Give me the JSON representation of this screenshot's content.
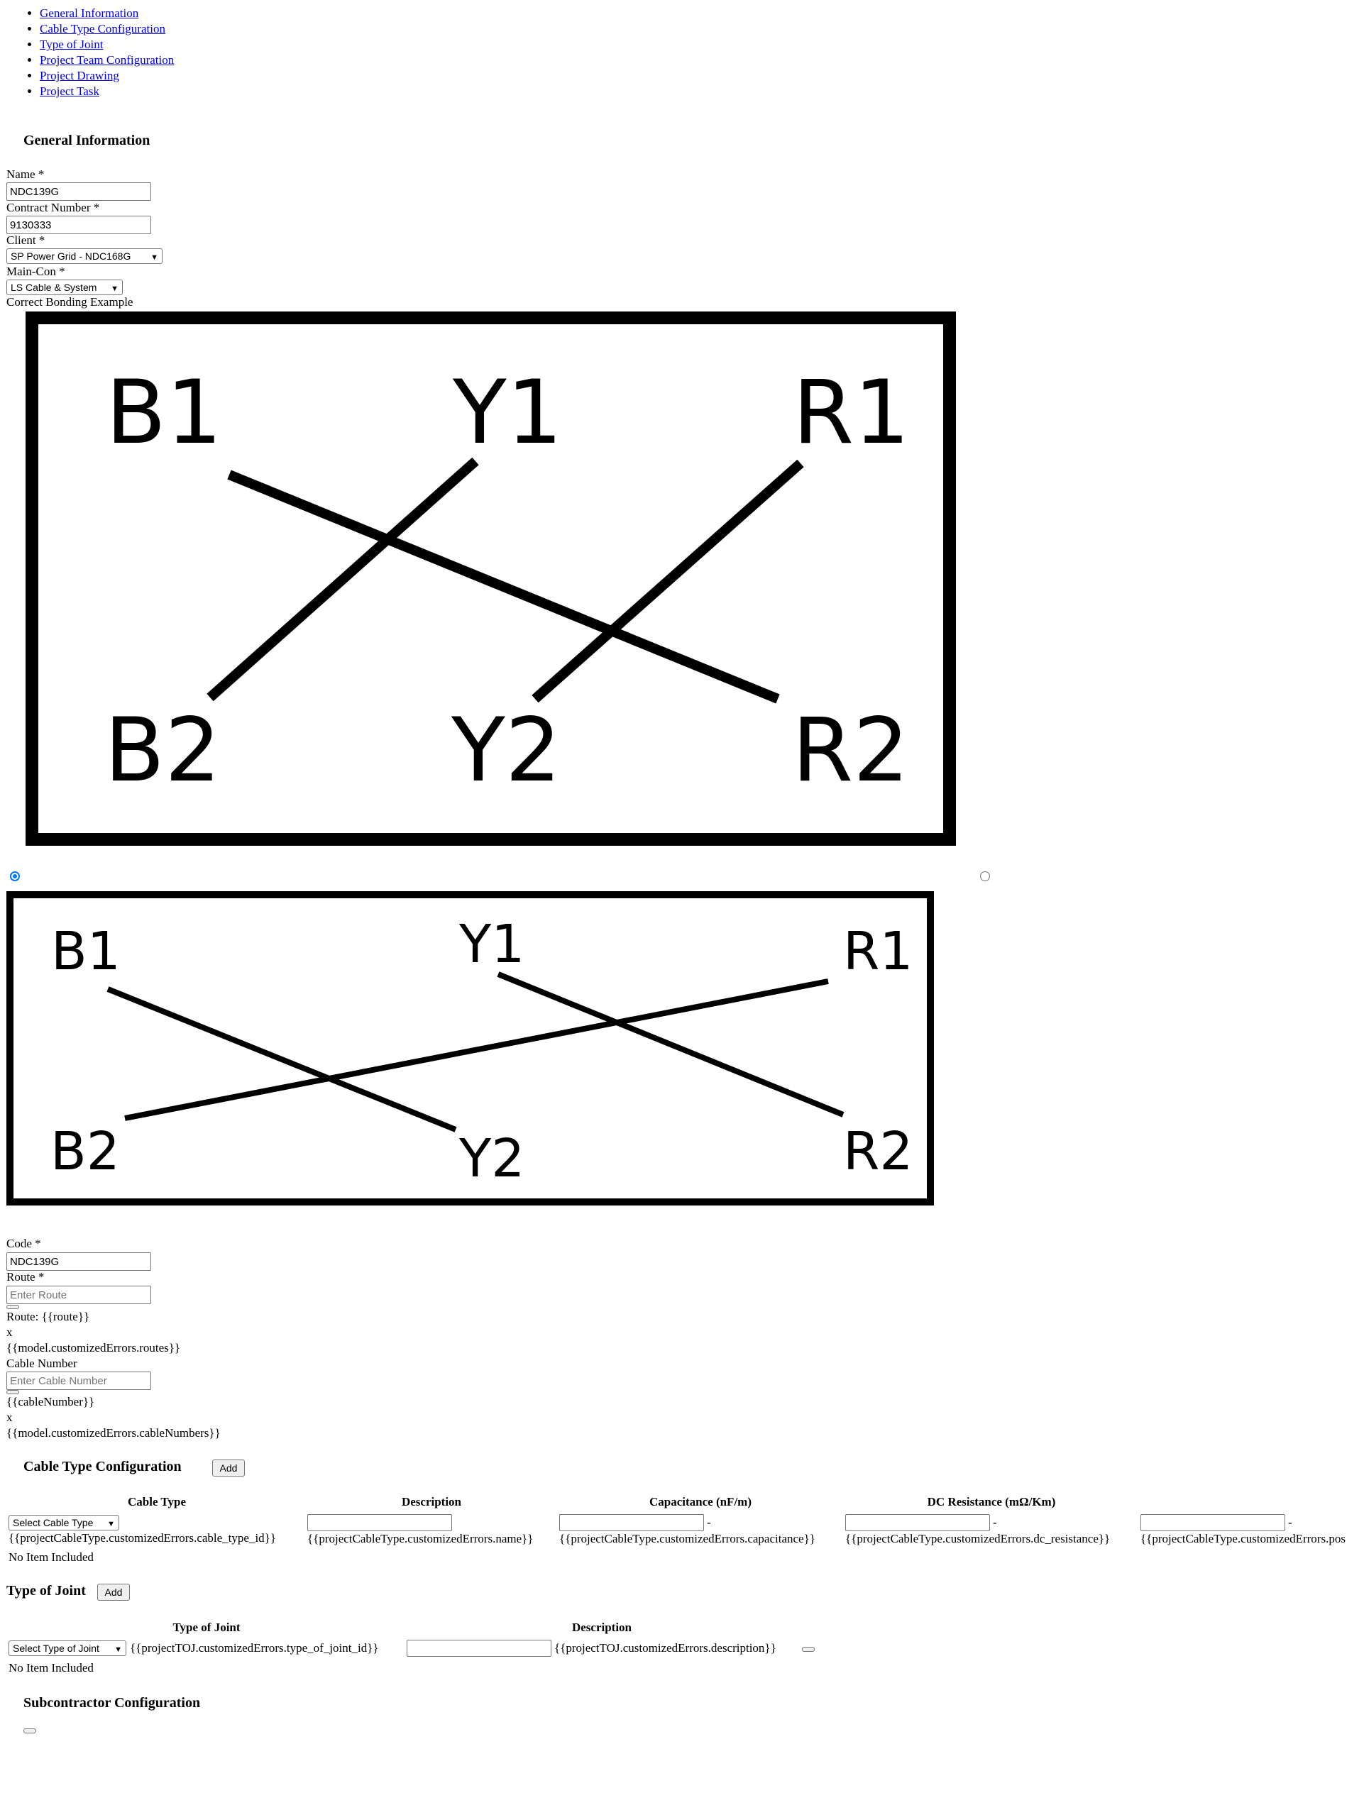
{
  "nav": [
    "General Information",
    "Cable Type Configuration",
    "Type of Joint",
    "Project Team Configuration",
    "Project Drawing",
    "Project Task"
  ],
  "general": {
    "title": "General Information",
    "name_label": "Name *",
    "name_value": "NDC139G",
    "contract_label": "Contract Number *",
    "contract_value": "9130333",
    "client_label": "Client *",
    "client_value": "SP Power Grid - NDC168G",
    "maincon_label": "Main-Con *",
    "maincon_value": "LS Cable & System",
    "bonding_label": "Correct Bonding Example"
  },
  "diagram1": {
    "B1": "B1",
    "Y1": "Y1",
    "R1": "R1",
    "B2": "B2",
    "Y2": "Y2",
    "R2": "R2"
  },
  "diagram2": {
    "B1": "B1",
    "Y1": "Y1",
    "R1": "R1",
    "B2": "B2",
    "Y2": "Y2",
    "R2": "R2"
  },
  "bonding_option": {
    "selected": 1
  },
  "code": {
    "code_label": "Code *",
    "code_value": "NDC139G",
    "route_label": "Route *",
    "route_placeholder": "Enter Route",
    "route_text": "Route: {{route}}",
    "route_x": "x",
    "route_error": "{{model.customizedErrors.routes}}",
    "cable_label": "Cable Number",
    "cable_placeholder": "Enter Cable Number",
    "cable_text": "{{cableNumber}}",
    "cable_x": "x",
    "cable_error": "{{model.customizedErrors.cableNumbers}}"
  },
  "cable_config": {
    "title": "Cable Type Configuration",
    "add_label": "Add",
    "headers": [
      "Cable Type",
      "Description",
      "Capacitance (nF/m)",
      "DC Resistance (mΩ/Km)"
    ],
    "select_label": "Select Cable Type",
    "dash": "-",
    "errors": [
      "{{projectCableType.customizedErrors.cable_type_id}}",
      "{{projectCableType.customizedErrors.name}}",
      "{{projectCableType.customizedErrors.capacitance}}",
      "{{projectCableType.customizedErrors.dc_resistance}}",
      "{{projectCableType.customizedErrors.pos"
    ],
    "empty": "No Item Included"
  },
  "joint": {
    "title": "Type of Joint",
    "add_label": "Add",
    "headers": [
      "Type of Joint",
      "Description"
    ],
    "select_label": "Select Type of Joint",
    "error_type": "{{projectTOJ.customizedErrors.type_of_joint_id}}",
    "error_desc": "{{projectTOJ.customizedErrors.description}}",
    "empty": "No Item Included"
  },
  "subcontractor": {
    "title": "Subcontractor Configuration"
  }
}
